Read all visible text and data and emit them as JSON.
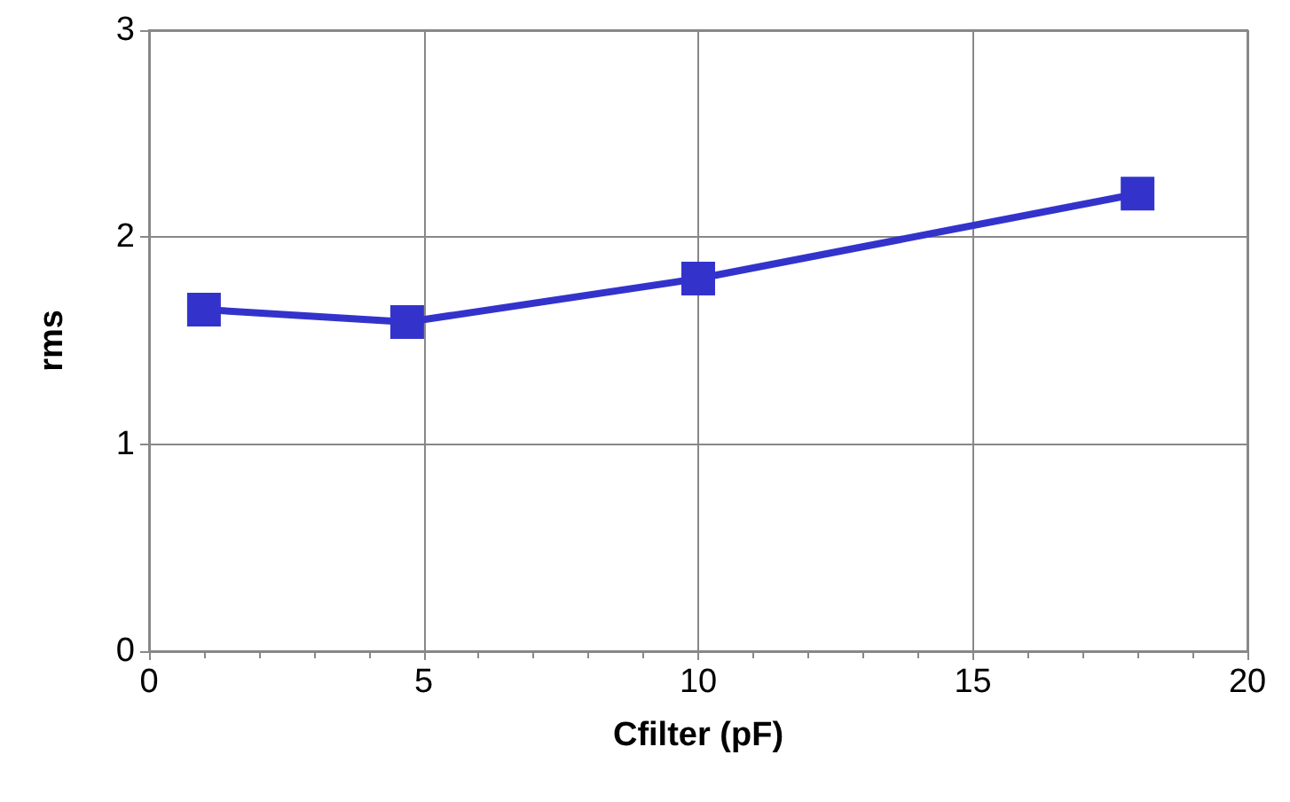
{
  "chart_data": {
    "type": "line",
    "xlabel": "Cfilter (pF)",
    "ylabel": "rms",
    "x": [
      1,
      4.7,
      10,
      18
    ],
    "series": [
      {
        "color": "#3333cc",
        "values": [
          1.65,
          1.59,
          1.8,
          2.21
        ]
      }
    ],
    "xlim": [
      0,
      20
    ],
    "xticks": [
      0,
      5,
      10,
      15,
      20
    ],
    "ylim": [
      0,
      3
    ],
    "yticks": [
      0,
      1,
      2,
      3
    ],
    "grid": true,
    "marker": "square",
    "line_style": "solid"
  }
}
